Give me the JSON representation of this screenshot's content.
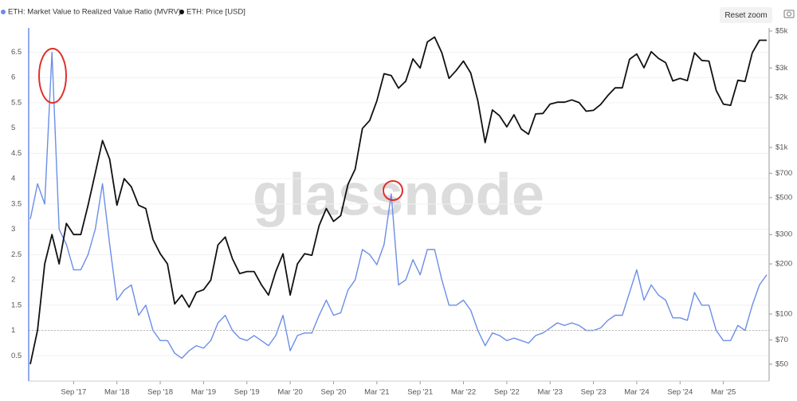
{
  "chart_data": {
    "type": "line",
    "legend": [
      "ETH: Market Value to Realized Value Ratio (MVRV)",
      "ETH: Price [USD]"
    ],
    "watermark": "glassnode",
    "reset_button": "Reset zoom",
    "x": [
      "2017-03",
      "2017-04",
      "2017-05",
      "2017-06",
      "2017-07",
      "2017-08",
      "2017-09",
      "2017-10",
      "2017-11",
      "2017-12",
      "2018-01",
      "2018-02",
      "2018-03",
      "2018-04",
      "2018-05",
      "2018-06",
      "2018-07",
      "2018-08",
      "2018-09",
      "2018-10",
      "2018-11",
      "2018-12",
      "2019-01",
      "2019-02",
      "2019-03",
      "2019-04",
      "2019-05",
      "2019-06",
      "2019-07",
      "2019-08",
      "2019-09",
      "2019-10",
      "2019-11",
      "2019-12",
      "2020-01",
      "2020-02",
      "2020-03",
      "2020-04",
      "2020-05",
      "2020-06",
      "2020-07",
      "2020-08",
      "2020-09",
      "2020-10",
      "2020-11",
      "2020-12",
      "2021-01",
      "2021-02",
      "2021-03",
      "2021-04",
      "2021-05",
      "2021-06",
      "2021-07",
      "2021-08",
      "2021-09",
      "2021-10",
      "2021-11",
      "2021-12",
      "2022-01",
      "2022-02",
      "2022-03",
      "2022-04",
      "2022-05",
      "2022-06",
      "2022-07",
      "2022-08",
      "2022-09",
      "2022-10",
      "2022-11",
      "2022-12",
      "2023-01",
      "2023-02",
      "2023-03",
      "2023-04",
      "2023-05",
      "2023-06",
      "2023-07",
      "2023-08",
      "2023-09",
      "2023-10",
      "2023-11",
      "2023-12",
      "2024-01",
      "2024-02",
      "2024-03",
      "2024-04",
      "2024-05",
      "2024-06",
      "2024-07",
      "2024-08",
      "2024-09",
      "2024-10",
      "2024-11",
      "2024-12",
      "2025-01",
      "2025-02",
      "2025-03",
      "2025-04",
      "2025-05",
      "2025-06",
      "2025-07",
      "2025-08",
      "2025-09"
    ],
    "series": [
      {
        "name": "ETH: Market Value to Realized Value Ratio (MVRV)",
        "color": "#6b8ee6",
        "axis": "y",
        "values": [
          3.2,
          3.9,
          3.5,
          6.5,
          3.0,
          2.7,
          2.2,
          2.2,
          2.5,
          3.0,
          3.9,
          2.7,
          1.6,
          1.8,
          1.9,
          1.3,
          1.5,
          1.0,
          0.8,
          0.8,
          0.55,
          0.45,
          0.6,
          0.7,
          0.65,
          0.8,
          1.15,
          1.3,
          1.0,
          0.85,
          0.8,
          0.9,
          0.8,
          0.7,
          0.9,
          1.3,
          0.6,
          0.9,
          0.95,
          0.95,
          1.3,
          1.6,
          1.3,
          1.35,
          1.8,
          2.0,
          2.6,
          2.5,
          2.3,
          2.7,
          3.7,
          1.9,
          2.0,
          2.4,
          2.1,
          2.6,
          2.6,
          2.0,
          1.5,
          1.5,
          1.6,
          1.4,
          1.0,
          0.7,
          0.95,
          0.9,
          0.8,
          0.85,
          0.8,
          0.75,
          0.9,
          0.95,
          1.05,
          1.15,
          1.1,
          1.15,
          1.1,
          1.0,
          1.0,
          1.05,
          1.2,
          1.3,
          1.3,
          1.75,
          2.2,
          1.6,
          1.9,
          1.7,
          1.6,
          1.25,
          1.25,
          1.2,
          1.75,
          1.5,
          1.5,
          1.0,
          0.8,
          0.8,
          1.1,
          1.0,
          1.5,
          1.9,
          2.1
        ]
      },
      {
        "name": "ETH: Price [USD]",
        "color": "#111111",
        "axis": "y2",
        "values": [
          50,
          80,
          200,
          300,
          200,
          350,
          300,
          300,
          450,
          700,
          1100,
          850,
          450,
          650,
          580,
          450,
          430,
          280,
          230,
          200,
          115,
          130,
          110,
          135,
          140,
          160,
          260,
          290,
          215,
          175,
          180,
          180,
          150,
          130,
          180,
          230,
          130,
          200,
          230,
          225,
          340,
          430,
          360,
          390,
          600,
          740,
          1300,
          1450,
          1900,
          2770,
          2700,
          2270,
          2500,
          3400,
          3000,
          4300,
          4600,
          3700,
          2600,
          2900,
          3300,
          2800,
          1900,
          1070,
          1680,
          1550,
          1330,
          1570,
          1290,
          1200,
          1590,
          1600,
          1820,
          1870,
          1870,
          1930,
          1860,
          1650,
          1670,
          1810,
          2050,
          2280,
          2280,
          3380,
          3640,
          3010,
          3760,
          3430,
          3230,
          2510,
          2600,
          2520,
          3700,
          3330,
          3300,
          2200,
          1820,
          1790,
          2530,
          2490,
          3700,
          4400,
          4400
        ]
      }
    ],
    "xticks": [
      {
        "value": "2017-09",
        "label": "Sep '17"
      },
      {
        "value": "2018-03",
        "label": "Mar '18"
      },
      {
        "value": "2018-09",
        "label": "Sep '18"
      },
      {
        "value": "2019-03",
        "label": "Mar '19"
      },
      {
        "value": "2019-09",
        "label": "Sep '19"
      },
      {
        "value": "2020-03",
        "label": "Mar '20"
      },
      {
        "value": "2020-09",
        "label": "Sep '20"
      },
      {
        "value": "2021-03",
        "label": "Mar '21"
      },
      {
        "value": "2021-09",
        "label": "Sep '21"
      },
      {
        "value": "2022-03",
        "label": "Mar '22"
      },
      {
        "value": "2022-09",
        "label": "Sep '22"
      },
      {
        "value": "2023-03",
        "label": "Mar '23"
      },
      {
        "value": "2023-09",
        "label": "Sep '23"
      },
      {
        "value": "2024-03",
        "label": "Mar '24"
      },
      {
        "value": "2024-09",
        "label": "Sep '24"
      },
      {
        "value": "2025-03",
        "label": "Mar '25"
      }
    ],
    "ylim": [
      0,
      6.98
    ],
    "yticks": [
      0.5,
      1,
      1.5,
      2,
      2.5,
      3,
      3.5,
      4,
      4.5,
      5,
      5.5,
      6,
      6.5
    ],
    "y2lim": [
      39.6,
      5220
    ],
    "y2log": true,
    "y2ticks": [
      {
        "value": 50,
        "label": "$50"
      },
      {
        "value": 70,
        "label": "$70"
      },
      {
        "value": 100,
        "label": "$100"
      },
      {
        "value": 200,
        "label": "$200"
      },
      {
        "value": 300,
        "label": "$300"
      },
      {
        "value": 500,
        "label": "$500"
      },
      {
        "value": 700,
        "label": "$700"
      },
      {
        "value": 1000,
        "label": "$1k"
      },
      {
        "value": 2000,
        "label": "$2k"
      },
      {
        "value": 3000,
        "label": "$3k"
      },
      {
        "value": 5000,
        "label": "$5k"
      }
    ],
    "reference_line": 1,
    "grid": true
  }
}
